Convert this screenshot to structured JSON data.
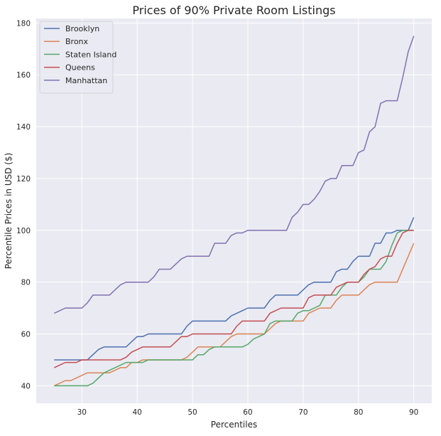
{
  "chart_data": {
    "type": "line",
    "title": "Prices of 90% Private Room Listings",
    "xlabel": "Percentiles",
    "ylabel": "Percentile Prices in USD ($)",
    "xlim": [
      21.75,
      93.25
    ],
    "ylim": [
      33.25,
      181.75
    ],
    "xticks": [
      30,
      40,
      50,
      60,
      70,
      80,
      90
    ],
    "yticks": [
      40,
      60,
      80,
      100,
      120,
      140,
      160,
      180
    ],
    "grid": true,
    "legend_position": "top-left",
    "background": "#eaeaf2",
    "x": [
      25,
      26,
      27,
      28,
      29,
      30,
      31,
      32,
      33,
      34,
      35,
      36,
      37,
      38,
      39,
      40,
      41,
      42,
      43,
      44,
      45,
      46,
      47,
      48,
      49,
      50,
      51,
      52,
      53,
      54,
      55,
      56,
      57,
      58,
      59,
      60,
      61,
      62,
      63,
      64,
      65,
      66,
      67,
      68,
      69,
      70,
      71,
      72,
      73,
      74,
      75,
      76,
      77,
      78,
      79,
      80,
      81,
      82,
      83,
      84,
      85,
      86,
      87,
      88,
      89,
      90
    ],
    "series": [
      {
        "name": "Brooklyn",
        "color": "#4c72b0",
        "values": [
          50,
          50,
          50,
          50,
          50,
          50,
          50,
          52,
          54,
          55,
          55,
          55,
          55,
          55,
          57,
          59,
          59,
          60,
          60,
          60,
          60,
          60,
          60,
          60,
          63,
          65,
          65,
          65,
          65,
          65,
          65,
          65,
          67,
          68,
          69,
          70,
          70,
          70,
          70,
          73,
          75,
          75,
          75,
          75,
          75,
          77,
          79,
          80,
          80,
          80,
          80,
          84,
          85,
          85,
          88,
          90,
          90,
          90,
          95,
          95,
          99,
          99,
          100,
          100,
          100,
          105
        ]
      },
      {
        "name": "Bronx",
        "color": "#dd8452",
        "values": [
          40,
          41,
          42,
          42,
          43,
          44,
          45,
          45,
          45,
          45,
          45,
          46,
          47,
          47,
          49,
          49,
          50,
          50,
          50,
          50,
          50,
          50,
          50,
          50,
          51,
          53,
          55,
          55,
          55,
          55,
          55,
          57,
          59,
          60,
          60,
          60,
          60,
          60,
          60,
          62,
          64,
          65,
          65,
          65,
          65,
          65,
          68,
          69,
          70,
          70,
          70,
          73,
          75,
          75,
          75,
          75,
          77,
          79,
          80,
          80,
          80,
          80,
          80,
          85,
          90,
          95
        ]
      },
      {
        "name": "Staten Island",
        "color": "#55a868",
        "values": [
          40,
          40,
          40,
          40,
          40,
          40,
          40,
          41,
          43,
          45,
          46,
          47,
          48,
          49,
          49,
          49,
          49,
          50,
          50,
          50,
          50,
          50,
          50,
          50,
          50,
          50,
          52,
          52,
          54,
          55,
          55,
          55,
          55,
          55,
          55,
          56,
          58,
          59,
          60,
          64,
          65,
          65,
          65,
          65,
          68,
          69,
          69,
          70,
          71,
          75,
          75,
          75,
          78,
          80,
          80,
          80,
          82,
          85,
          85,
          85,
          88,
          94,
          99,
          100,
          100,
          100
        ]
      },
      {
        "name": "Queens",
        "color": "#c44e52",
        "values": [
          47,
          48,
          49,
          49,
          49,
          50,
          50,
          50,
          50,
          50,
          50,
          50,
          50,
          51,
          53,
          54,
          55,
          55,
          55,
          55,
          55,
          55,
          57,
          59,
          59,
          60,
          60,
          60,
          60,
          60,
          60,
          60,
          60,
          63,
          65,
          65,
          65,
          65,
          65,
          68,
          69,
          70,
          70,
          70,
          70,
          70,
          74,
          75,
          75,
          75,
          75,
          78,
          79,
          80,
          80,
          80,
          83,
          85,
          86,
          89,
          90,
          90,
          95,
          99,
          100,
          100
        ]
      },
      {
        "name": "Manhattan",
        "color": "#8172b3",
        "values": [
          68,
          69,
          70,
          70,
          70,
          70,
          72,
          75,
          75,
          75,
          75,
          77,
          79,
          80,
          80,
          80,
          80,
          80,
          82,
          85,
          85,
          85,
          87,
          89,
          90,
          90,
          90,
          90,
          90,
          95,
          95,
          95,
          98,
          99,
          99,
          100,
          100,
          100,
          100,
          100,
          100,
          100,
          100,
          105,
          107,
          110,
          110,
          112,
          115,
          119,
          120,
          120,
          125,
          125,
          125,
          130,
          131,
          138,
          140,
          149,
          150,
          150,
          150,
          159,
          169,
          175
        ]
      }
    ]
  }
}
